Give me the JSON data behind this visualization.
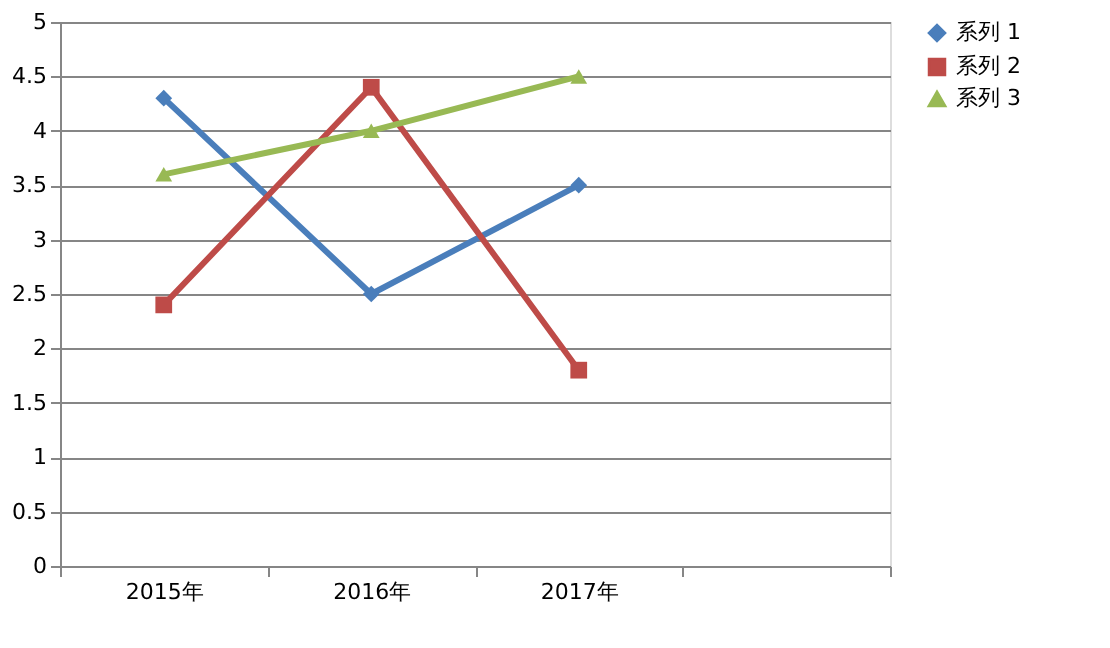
{
  "chart_data": {
    "type": "line",
    "categories": [
      "2015年",
      "2016年",
      "2017年",
      null
    ],
    "series": [
      {
        "name": "系列 1",
        "color": "#4a7ebb",
        "marker": "diamond",
        "values": [
          4.3,
          2.5,
          3.5,
          null
        ]
      },
      {
        "name": "系列 2",
        "color": "#be4b48",
        "marker": "square",
        "values": [
          2.4,
          4.4,
          1.8,
          null
        ]
      },
      {
        "name": "系列 3",
        "color": "#98b954",
        "marker": "triangle",
        "values": [
          3.6,
          4.0,
          4.5,
          null
        ]
      }
    ],
    "ylim": [
      0,
      5
    ],
    "yticks": [
      0,
      0.5,
      1,
      1.5,
      2,
      2.5,
      3,
      3.5,
      4,
      4.5,
      5
    ],
    "grid": "y",
    "legend": "right",
    "line_style": "solid"
  }
}
